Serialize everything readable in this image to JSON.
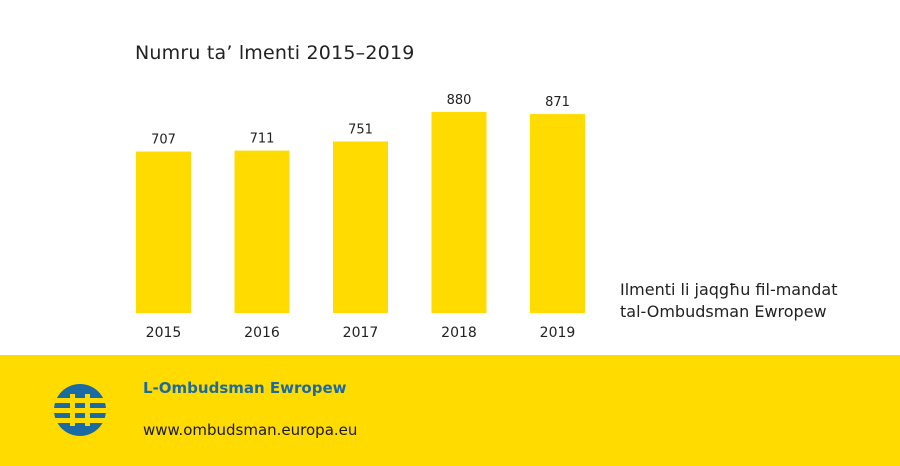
{
  "chart_data": {
    "type": "bar",
    "title": "Numru ta’ lmenti 2015–2019",
    "categories": [
      "2015",
      "2016",
      "2017",
      "2018",
      "2019"
    ],
    "series": [
      {
        "name": "Ilmenti li jaqgħu fil-mandat tal-Ombudsman Ewropew",
        "values": [
          707,
          711,
          751,
          880,
          871
        ]
      }
    ],
    "ylim": [
      0,
      880
    ],
    "bar_color": "#ffdb00",
    "grid": false,
    "legend_placement": "right"
  },
  "legend": {
    "line1": "Ilmenti li jaqgħu fil-mandat",
    "line2": "tal-Ombudsman Ewropew"
  },
  "footer": {
    "org_name": "L-Ombudsman Ewropew",
    "url": "www.ombudsman.europa.eu",
    "background_color": "#ffdb00",
    "logo_color": "#1a6aa3",
    "logo_icon": "ombudsman-logo-icon"
  }
}
